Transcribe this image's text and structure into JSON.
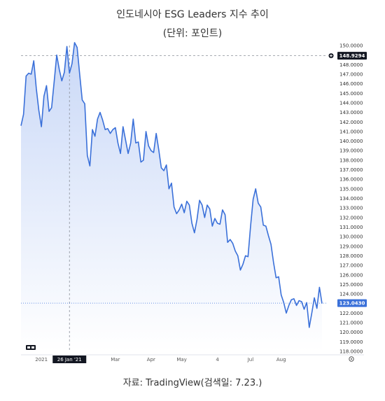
{
  "header": {
    "title": "인도네시아 ESG Leaders 지수 추이",
    "subtitle": "(단위: 포인트)"
  },
  "footer": {
    "source": "자료: TradingView(검색일: 7.23.)"
  },
  "chart_data": {
    "type": "line",
    "title": "인도네시아 ESG Leaders 지수 추이",
    "ylabel": "",
    "xlabel": "",
    "ylim": [
      118,
      150
    ],
    "y_ticks": [
      "150.0000",
      "149.0000",
      "148.0000",
      "147.0000",
      "146.0000",
      "145.0000",
      "144.0000",
      "143.0000",
      "142.0000",
      "141.0000",
      "140.0000",
      "139.0000",
      "138.0000",
      "137.0000",
      "136.0000",
      "135.0000",
      "134.0000",
      "133.0000",
      "132.0000",
      "131.0000",
      "130.0000",
      "129.0000",
      "128.0000",
      "127.0000",
      "126.0000",
      "125.0000",
      "124.0000",
      "123.0000",
      "122.0000",
      "121.0000",
      "120.0000",
      "119.0000",
      "118.0000"
    ],
    "x_ticks": [
      {
        "label": "2021",
        "t": 8
      },
      {
        "label": "26 Jan '21",
        "t": 19
      },
      {
        "label": "Mar",
        "t": 37
      },
      {
        "label": "Apr",
        "t": 51
      },
      {
        "label": "May",
        "t": 63
      },
      {
        "label": "4",
        "t": 77
      },
      {
        "label": "Jul",
        "t": 90
      },
      {
        "label": "Aug",
        "t": 102
      }
    ],
    "crosshair_label": "26 Jan '21",
    "price_tags": [
      {
        "label": "148.9294",
        "value": 148.9294,
        "style": "dark"
      },
      {
        "label": "123.0430",
        "value": 123.043,
        "style": "blue"
      }
    ],
    "colors": {
      "line": "#3a70d9",
      "fill_top": "#c9d8f7",
      "fill_bottom": "#ffffff",
      "tag_dark": "#131722",
      "tag_blue": "#3a70d9"
    },
    "series": [
      {
        "values": [
          141.6,
          142.8,
          146.8,
          147.1,
          147.0,
          148.4,
          145.5,
          143.2,
          141.5,
          144.7,
          145.8,
          143.1,
          143.5,
          146.2,
          149.0,
          147.5,
          146.3,
          147.2,
          149.9,
          147.1,
          148.1,
          150.3,
          149.8,
          147.0,
          144.3,
          143.9,
          138.5,
          137.4,
          141.2,
          140.5,
          142.3,
          143.0,
          142.2,
          141.2,
          141.3,
          140.8,
          141.2,
          141.4,
          139.8,
          138.7,
          141.5,
          140.1,
          138.7,
          139.8,
          142.3,
          139.8,
          139.9,
          137.8,
          138.0,
          141.0,
          139.5,
          139.0,
          138.8,
          140.8,
          139.1,
          137.2,
          136.9,
          137.5,
          135.0,
          135.6,
          133.1,
          132.4,
          132.8,
          133.4,
          132.5,
          133.7,
          133.3,
          131.4,
          130.4,
          131.8,
          133.8,
          133.3,
          132.0,
          133.3,
          132.9,
          131.1,
          131.9,
          131.4,
          131.3,
          132.8,
          132.3,
          129.4,
          129.7,
          129.3,
          128.5,
          128.0,
          126.5,
          127.1,
          128.0,
          127.9,
          131.1,
          133.9,
          135.0,
          133.5,
          133.1,
          131.2,
          131.1,
          130.1,
          129.2,
          127.3,
          125.7,
          125.8,
          123.9,
          123.1,
          122.0,
          122.8,
          123.4,
          123.5,
          122.8,
          123.3,
          123.2,
          122.4,
          123.1,
          120.5,
          122.0,
          123.6,
          122.5,
          124.7,
          123.0
        ]
      }
    ]
  }
}
